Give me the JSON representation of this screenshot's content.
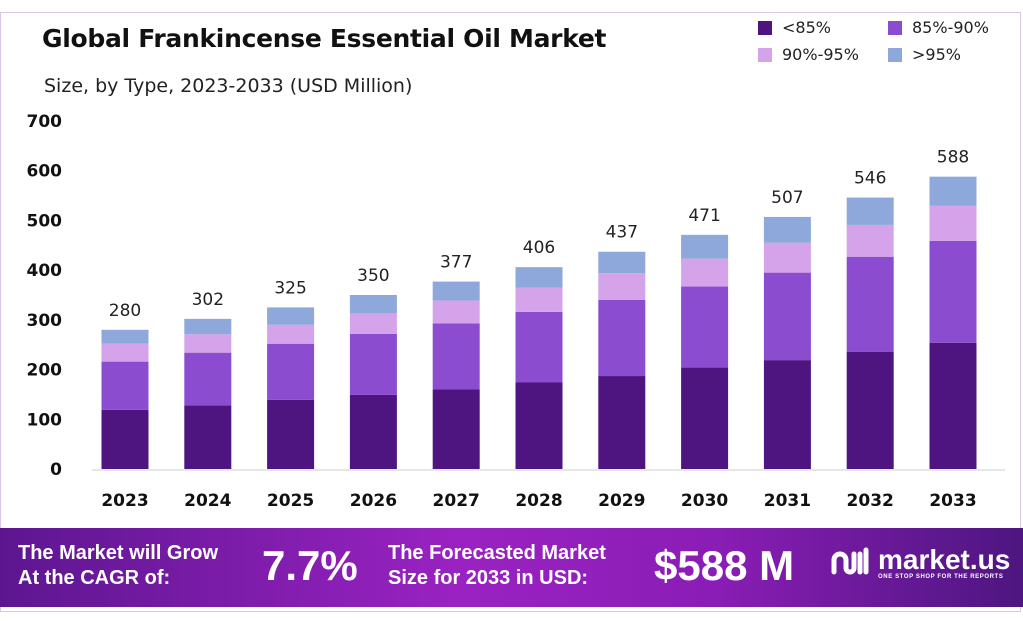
{
  "chart_data": {
    "type": "bar",
    "stacked": true,
    "title": "Global Frankincense Essential Oil Market",
    "subtitle": "Size, by Type, 2023-2033 (USD Million)",
    "xlabel": "",
    "ylabel": "",
    "ylim": [
      0,
      700
    ],
    "yticks": [
      0,
      100,
      200,
      300,
      400,
      500,
      600,
      700
    ],
    "grid": false,
    "legend_position": "top-right",
    "categories": [
      "2023",
      "2024",
      "2025",
      "2026",
      "2027",
      "2028",
      "2029",
      "2030",
      "2031",
      "2032",
      "2033"
    ],
    "series": [
      {
        "name": "<85%",
        "color": "#4e1581",
        "values": [
          119,
          128,
          139,
          149,
          160,
          174,
          187,
          204,
          219,
          236,
          254
        ]
      },
      {
        "name": "85%-90%",
        "color": "#8b4ccf",
        "values": [
          97,
          106,
          113,
          123,
          133,
          142,
          153,
          163,
          176,
          191,
          205
        ]
      },
      {
        "name": "90%-95%",
        "color": "#d4a3ea",
        "values": [
          36,
          37,
          38,
          41,
          46,
          49,
          54,
          56,
          60,
          64,
          71
        ]
      },
      {
        "name": ">95%",
        "color": "#8ea8dc",
        "values": [
          28,
          31,
          35,
          37,
          38,
          41,
          43,
          48,
          52,
          55,
          58
        ]
      }
    ],
    "totals": [
      280,
      302,
      325,
      350,
      377,
      406,
      437,
      471,
      507,
      546,
      588
    ]
  },
  "banner": {
    "cagr_label_line1": "The Market will Grow",
    "cagr_label_line2": "At the CAGR of:",
    "cagr_value": "7.7%",
    "forecast_label_line1": "The Forecasted Market",
    "forecast_label_line2": "Size for 2033 in USD:",
    "forecast_value": "$588 M",
    "logo_text": "market.us",
    "logo_tagline": "ONE STOP SHOP FOR THE REPORTS"
  }
}
